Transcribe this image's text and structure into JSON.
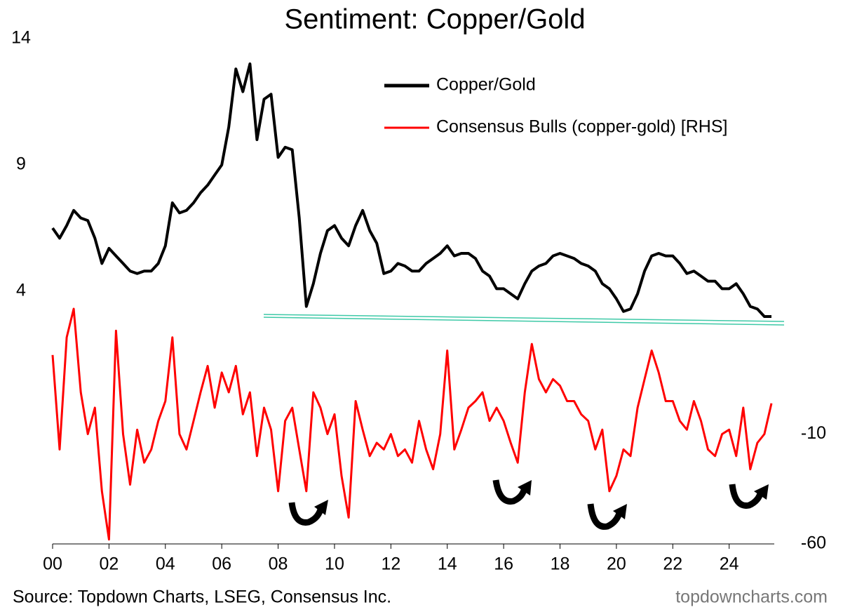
{
  "chart_data": {
    "type": "line",
    "title": "Sentiment: Copper/Gold",
    "source": "Source: Topdown Charts, LSEG, Consensus Inc.",
    "watermark": "topdowncharts.com",
    "x": [
      2000,
      2000.25,
      2000.5,
      2000.75,
      2001,
      2001.25,
      2001.5,
      2001.75,
      2002,
      2002.25,
      2002.5,
      2002.75,
      2003,
      2003.25,
      2003.5,
      2003.75,
      2004,
      2004.25,
      2004.5,
      2004.75,
      2005,
      2005.25,
      2005.5,
      2005.75,
      2006,
      2006.25,
      2006.5,
      2006.75,
      2007,
      2007.25,
      2007.5,
      2007.75,
      2008,
      2008.25,
      2008.5,
      2008.75,
      2009,
      2009.25,
      2009.5,
      2009.75,
      2010,
      2010.25,
      2010.5,
      2010.75,
      2011,
      2011.25,
      2011.5,
      2011.75,
      2012,
      2012.25,
      2012.5,
      2012.75,
      2013,
      2013.25,
      2013.5,
      2013.75,
      2014,
      2014.25,
      2014.5,
      2014.75,
      2015,
      2015.25,
      2015.5,
      2015.75,
      2016,
      2016.25,
      2016.5,
      2016.75,
      2017,
      2017.25,
      2017.5,
      2017.75,
      2018,
      2018.25,
      2018.5,
      2018.75,
      2019,
      2019.25,
      2019.5,
      2019.75,
      2020,
      2020.25,
      2020.5,
      2020.75,
      2021,
      2021.25,
      2021.5,
      2021.75,
      2022,
      2022.25,
      2022.5,
      2022.75,
      2023,
      2023.25,
      2023.5,
      2023.75,
      2024,
      2024.25,
      2024.5,
      2024.75,
      2025,
      2025.25,
      2025.5
    ],
    "series": [
      {
        "name": "Copper/Gold",
        "color": "#000000",
        "axis": "y",
        "values": [
          6.5,
          6.1,
          6.6,
          7.2,
          6.9,
          6.8,
          6.1,
          5.1,
          5.7,
          5.4,
          5.1,
          4.8,
          4.7,
          4.8,
          4.8,
          5.1,
          5.8,
          7.5,
          7.1,
          7.2,
          7.5,
          7.9,
          8.2,
          8.6,
          9.0,
          10.5,
          12.8,
          11.9,
          13.0,
          10.0,
          11.6,
          11.8,
          9.3,
          9.7,
          9.6,
          6.9,
          3.4,
          4.3,
          5.5,
          6.4,
          6.6,
          6.1,
          5.8,
          6.6,
          7.2,
          6.4,
          5.9,
          4.7,
          4.8,
          5.1,
          5.0,
          4.8,
          4.8,
          5.1,
          5.3,
          5.5,
          5.8,
          5.4,
          5.5,
          5.5,
          5.3,
          4.8,
          4.6,
          4.1,
          4.1,
          3.9,
          3.7,
          4.3,
          4.8,
          5.0,
          5.1,
          5.4,
          5.5,
          5.4,
          5.3,
          5.1,
          5.0,
          4.8,
          4.3,
          4.1,
          3.7,
          3.2,
          3.3,
          3.9,
          4.8,
          5.4,
          5.5,
          5.4,
          5.4,
          5.1,
          4.7,
          4.8,
          4.6,
          4.4,
          4.4,
          4.1,
          4.1,
          4.3,
          3.9,
          3.4,
          3.3,
          3.0,
          3.0
        ]
      },
      {
        "name": "Consensus Bulls (copper-gold) [RHS]",
        "color": "#ff0000",
        "axis": "y2",
        "values": [
          26,
          -17,
          34,
          47,
          9,
          -10,
          2,
          -36,
          -58,
          37,
          -10,
          -33,
          -8,
          -23,
          -17,
          -4,
          5,
          34,
          -10,
          -17,
          -4,
          9,
          21,
          2,
          18,
          9,
          21,
          -1,
          9,
          -20,
          2,
          -8,
          -36,
          -4,
          2,
          -17,
          -36,
          9,
          2,
          -10,
          -1,
          -29,
          -48,
          5,
          -8,
          -20,
          -14,
          -17,
          -10,
          -20,
          -17,
          -23,
          -4,
          -17,
          -26,
          -10,
          28,
          -17,
          -8,
          2,
          5,
          9,
          -4,
          2,
          -4,
          -14,
          -23,
          9,
          31,
          15,
          9,
          15,
          12,
          5,
          5,
          -1,
          -4,
          -17,
          -8,
          -36,
          -29,
          -17,
          -20,
          2,
          15,
          28,
          18,
          5,
          5,
          -4,
          -8,
          5,
          -4,
          -17,
          -20,
          -10,
          -8,
          -20,
          2,
          -26,
          -14,
          -10,
          4
        ]
      }
    ],
    "xlim": [
      2000,
      2025.6
    ],
    "xticks": [
      {
        "value": 2000,
        "label": "00"
      },
      {
        "value": 2002,
        "label": "02"
      },
      {
        "value": 2004,
        "label": "04"
      },
      {
        "value": 2006,
        "label": "06"
      },
      {
        "value": 2008,
        "label": "08"
      },
      {
        "value": 2010,
        "label": "10"
      },
      {
        "value": 2012,
        "label": "12"
      },
      {
        "value": 2014,
        "label": "14"
      },
      {
        "value": 2016,
        "label": "16"
      },
      {
        "value": 2018,
        "label": "18"
      },
      {
        "value": 2020,
        "label": "20"
      },
      {
        "value": 2022,
        "label": "22"
      },
      {
        "value": 2024,
        "label": "24"
      }
    ],
    "ylim": [
      -6,
      14
    ],
    "yticks": [
      4,
      9,
      14
    ],
    "y2lim": [
      -60,
      170
    ],
    "y2ticks": [
      -60,
      -10
    ]
  }
}
